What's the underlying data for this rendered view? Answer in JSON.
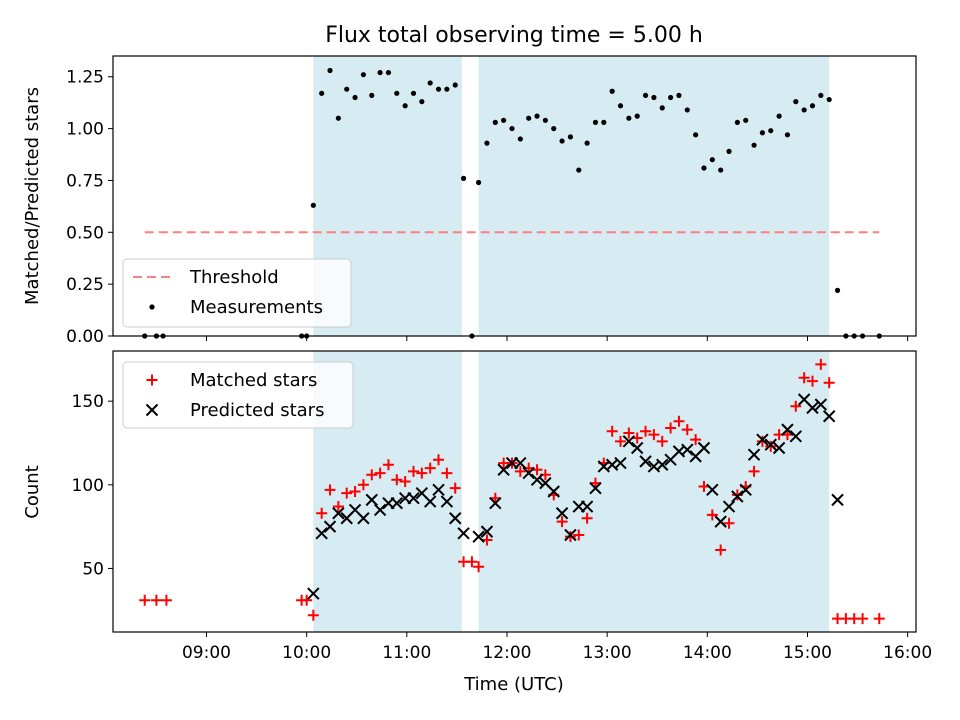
{
  "chart_data": [
    {
      "type": "scatter",
      "title": "Flux total observing time = 5.00 h",
      "xlabel": "",
      "ylabel": "Matched/Predicted stars",
      "xlim": [
        "08:04",
        "16:05"
      ],
      "ylim": [
        0,
        1.35
      ],
      "yticks": [
        "0.00",
        "0.25",
        "0.50",
        "0.75",
        "1.00",
        "1.25"
      ],
      "grid": false,
      "legend": "lower-left",
      "shaded_intervals": [
        [
          "10:04",
          "11:33"
        ],
        [
          "11:43",
          "15:13"
        ]
      ],
      "shade_color": "#add8e6",
      "series": [
        {
          "name": "Threshold",
          "kind": "dashed-line",
          "color": "#ff7f7f",
          "x": [
            "08:23",
            "15:43"
          ],
          "y": [
            0.5,
            0.5
          ]
        },
        {
          "name": "Measurements",
          "kind": "points",
          "color": "#000000",
          "points": [
            [
              "08:23",
              0.0
            ],
            [
              "08:30",
              0.0
            ],
            [
              "08:34",
              0.0
            ],
            [
              "09:57",
              0.0
            ],
            [
              "10:00",
              0.0
            ],
            [
              "10:04",
              0.63
            ],
            [
              "10:09",
              1.17
            ],
            [
              "10:14",
              1.28
            ],
            [
              "10:19",
              1.05
            ],
            [
              "10:24",
              1.19
            ],
            [
              "10:29",
              1.15
            ],
            [
              "10:34",
              1.26
            ],
            [
              "10:39",
              1.16
            ],
            [
              "10:44",
              1.27
            ],
            [
              "10:49",
              1.27
            ],
            [
              "10:54",
              1.17
            ],
            [
              "10:59",
              1.11
            ],
            [
              "11:04",
              1.17
            ],
            [
              "11:09",
              1.13
            ],
            [
              "11:14",
              1.22
            ],
            [
              "11:19",
              1.19
            ],
            [
              "11:24",
              1.19
            ],
            [
              "11:29",
              1.21
            ],
            [
              "11:34",
              0.76
            ],
            [
              "11:39",
              0.0
            ],
            [
              "11:43",
              0.74
            ],
            [
              "11:48",
              0.93
            ],
            [
              "11:53",
              1.03
            ],
            [
              "11:58",
              1.04
            ],
            [
              "12:03",
              1.0
            ],
            [
              "12:08",
              0.95
            ],
            [
              "12:13",
              1.05
            ],
            [
              "12:18",
              1.06
            ],
            [
              "12:23",
              1.04
            ],
            [
              "12:28",
              1.0
            ],
            [
              "12:33",
              0.94
            ],
            [
              "12:38",
              0.96
            ],
            [
              "12:43",
              0.8
            ],
            [
              "12:48",
              0.93
            ],
            [
              "12:53",
              1.03
            ],
            [
              "12:58",
              1.03
            ],
            [
              "13:03",
              1.18
            ],
            [
              "13:08",
              1.11
            ],
            [
              "13:13",
              1.05
            ],
            [
              "13:18",
              1.06
            ],
            [
              "13:23",
              1.16
            ],
            [
              "13:28",
              1.15
            ],
            [
              "13:33",
              1.1
            ],
            [
              "13:38",
              1.15
            ],
            [
              "13:43",
              1.16
            ],
            [
              "13:48",
              1.09
            ],
            [
              "13:53",
              0.97
            ],
            [
              "13:58",
              0.81
            ],
            [
              "14:03",
              0.85
            ],
            [
              "14:08",
              0.8
            ],
            [
              "14:13",
              0.89
            ],
            [
              "14:18",
              1.03
            ],
            [
              "14:23",
              1.04
            ],
            [
              "14:28",
              0.92
            ],
            [
              "14:33",
              0.98
            ],
            [
              "14:38",
              0.99
            ],
            [
              "14:43",
              1.06
            ],
            [
              "14:48",
              0.97
            ],
            [
              "14:53",
              1.13
            ],
            [
              "14:58",
              1.09
            ],
            [
              "15:03",
              1.11
            ],
            [
              "15:08",
              1.16
            ],
            [
              "15:13",
              1.14
            ],
            [
              "15:18",
              0.22
            ],
            [
              "15:23",
              0.0
            ],
            [
              "15:28",
              0.0
            ],
            [
              "15:33",
              0.0
            ],
            [
              "15:43",
              0.0
            ]
          ]
        }
      ]
    },
    {
      "type": "scatter",
      "title": "",
      "xlabel": "Time (UTC)",
      "ylabel": "Count",
      "xlim": [
        "08:04",
        "16:05"
      ],
      "ylim": [
        12,
        180
      ],
      "yticks": [
        "50",
        "100",
        "150"
      ],
      "xticks": [
        "09:00",
        "10:00",
        "11:00",
        "12:00",
        "13:00",
        "14:00",
        "15:00",
        "16:00"
      ],
      "grid": false,
      "legend": "upper-left",
      "shaded_intervals": [
        [
          "10:04",
          "11:33"
        ],
        [
          "11:43",
          "15:13"
        ]
      ],
      "shade_color": "#add8e6",
      "series": [
        {
          "name": "Matched stars",
          "marker": "plus",
          "color": "#ff0000",
          "points": [
            [
              "08:23",
              31
            ],
            [
              "08:30",
              31
            ],
            [
              "08:36",
              31
            ],
            [
              "09:57",
              31
            ],
            [
              "10:00",
              31
            ],
            [
              "10:04",
              22
            ],
            [
              "10:09",
              83
            ],
            [
              "10:14",
              97
            ],
            [
              "10:19",
              87
            ],
            [
              "10:24",
              95
            ],
            [
              "10:29",
              96
            ],
            [
              "10:34",
              100
            ],
            [
              "10:39",
              106
            ],
            [
              "10:44",
              107
            ],
            [
              "10:49",
              112
            ],
            [
              "10:54",
              103
            ],
            [
              "10:59",
              102
            ],
            [
              "11:04",
              108
            ],
            [
              "11:09",
              107
            ],
            [
              "11:14",
              110
            ],
            [
              "11:19",
              115
            ],
            [
              "11:24",
              107
            ],
            [
              "11:29",
              98
            ],
            [
              "11:34",
              54
            ],
            [
              "11:39",
              54
            ],
            [
              "11:43",
              51
            ],
            [
              "11:48",
              67
            ],
            [
              "11:53",
              92
            ],
            [
              "11:58",
              113
            ],
            [
              "12:03",
              113
            ],
            [
              "12:08",
              108
            ],
            [
              "12:13",
              110
            ],
            [
              "12:18",
              109
            ],
            [
              "12:23",
              106
            ],
            [
              "12:28",
              94
            ],
            [
              "12:33",
              78
            ],
            [
              "12:38",
              69
            ],
            [
              "12:43",
              70
            ],
            [
              "12:48",
              80
            ],
            [
              "12:53",
              101
            ],
            [
              "12:58",
              113
            ],
            [
              "13:03",
              132
            ],
            [
              "13:08",
              126
            ],
            [
              "13:13",
              131
            ],
            [
              "13:18",
              128
            ],
            [
              "13:23",
              132
            ],
            [
              "13:28",
              130
            ],
            [
              "13:33",
              126
            ],
            [
              "13:38",
              134
            ],
            [
              "13:43",
              138
            ],
            [
              "13:48",
              133
            ],
            [
              "13:53",
              127
            ],
            [
              "13:58",
              99
            ],
            [
              "14:03",
              82
            ],
            [
              "14:08",
              61
            ],
            [
              "14:13",
              77
            ],
            [
              "14:18",
              94
            ],
            [
              "14:23",
              99
            ],
            [
              "14:28",
              108
            ],
            [
              "14:33",
              126
            ],
            [
              "14:38",
              123
            ],
            [
              "14:43",
              130
            ],
            [
              "14:48",
              130
            ],
            [
              "14:53",
              147
            ],
            [
              "14:58",
              164
            ],
            [
              "15:03",
              162
            ],
            [
              "15:08",
              172
            ],
            [
              "15:13",
              161
            ],
            [
              "15:18",
              20
            ],
            [
              "15:23",
              20
            ],
            [
              "15:28",
              20
            ],
            [
              "15:33",
              20
            ],
            [
              "15:43",
              20
            ]
          ]
        },
        {
          "name": "Predicted stars",
          "marker": "x",
          "color": "#000000",
          "points": [
            [
              "10:04",
              35
            ],
            [
              "10:09",
              71
            ],
            [
              "10:14",
              75
            ],
            [
              "10:19",
              83
            ],
            [
              "10:24",
              80
            ],
            [
              "10:29",
              85
            ],
            [
              "10:34",
              80
            ],
            [
              "10:39",
              91
            ],
            [
              "10:44",
              85
            ],
            [
              "10:49",
              89
            ],
            [
              "10:54",
              89
            ],
            [
              "10:59",
              92
            ],
            [
              "11:04",
              92
            ],
            [
              "11:09",
              95
            ],
            [
              "11:14",
              90
            ],
            [
              "11:19",
              97
            ],
            [
              "11:24",
              90
            ],
            [
              "11:29",
              80
            ],
            [
              "11:34",
              71
            ],
            [
              "11:43",
              69
            ],
            [
              "11:48",
              72
            ],
            [
              "11:53",
              89
            ],
            [
              "11:58",
              109
            ],
            [
              "12:03",
              113
            ],
            [
              "12:08",
              113
            ],
            [
              "12:13",
              107
            ],
            [
              "12:18",
              103
            ],
            [
              "12:23",
              101
            ],
            [
              "12:28",
              96
            ],
            [
              "12:33",
              83
            ],
            [
              "12:38",
              70
            ],
            [
              "12:43",
              87
            ],
            [
              "12:48",
              87
            ],
            [
              "12:53",
              98
            ],
            [
              "12:58",
              111
            ],
            [
              "13:03",
              112
            ],
            [
              "13:08",
              113
            ],
            [
              "13:13",
              126
            ],
            [
              "13:18",
              122
            ],
            [
              "13:23",
              114
            ],
            [
              "13:28",
              111
            ],
            [
              "13:33",
              112
            ],
            [
              "13:38",
              115
            ],
            [
              "13:43",
              120
            ],
            [
              "13:48",
              121
            ],
            [
              "13:53",
              117
            ],
            [
              "13:58",
              122
            ],
            [
              "14:03",
              97
            ],
            [
              "14:08",
              78
            ],
            [
              "14:13",
              87
            ],
            [
              "14:18",
              93
            ],
            [
              "14:23",
              97
            ],
            [
              "14:28",
              118
            ],
            [
              "14:33",
              127
            ],
            [
              "14:38",
              124
            ],
            [
              "14:43",
              122
            ],
            [
              "14:48",
              133
            ],
            [
              "14:53",
              129
            ],
            [
              "14:58",
              151
            ],
            [
              "15:03",
              146
            ],
            [
              "15:08",
              148
            ],
            [
              "15:13",
              141
            ],
            [
              "15:18",
              91
            ]
          ]
        }
      ]
    }
  ]
}
